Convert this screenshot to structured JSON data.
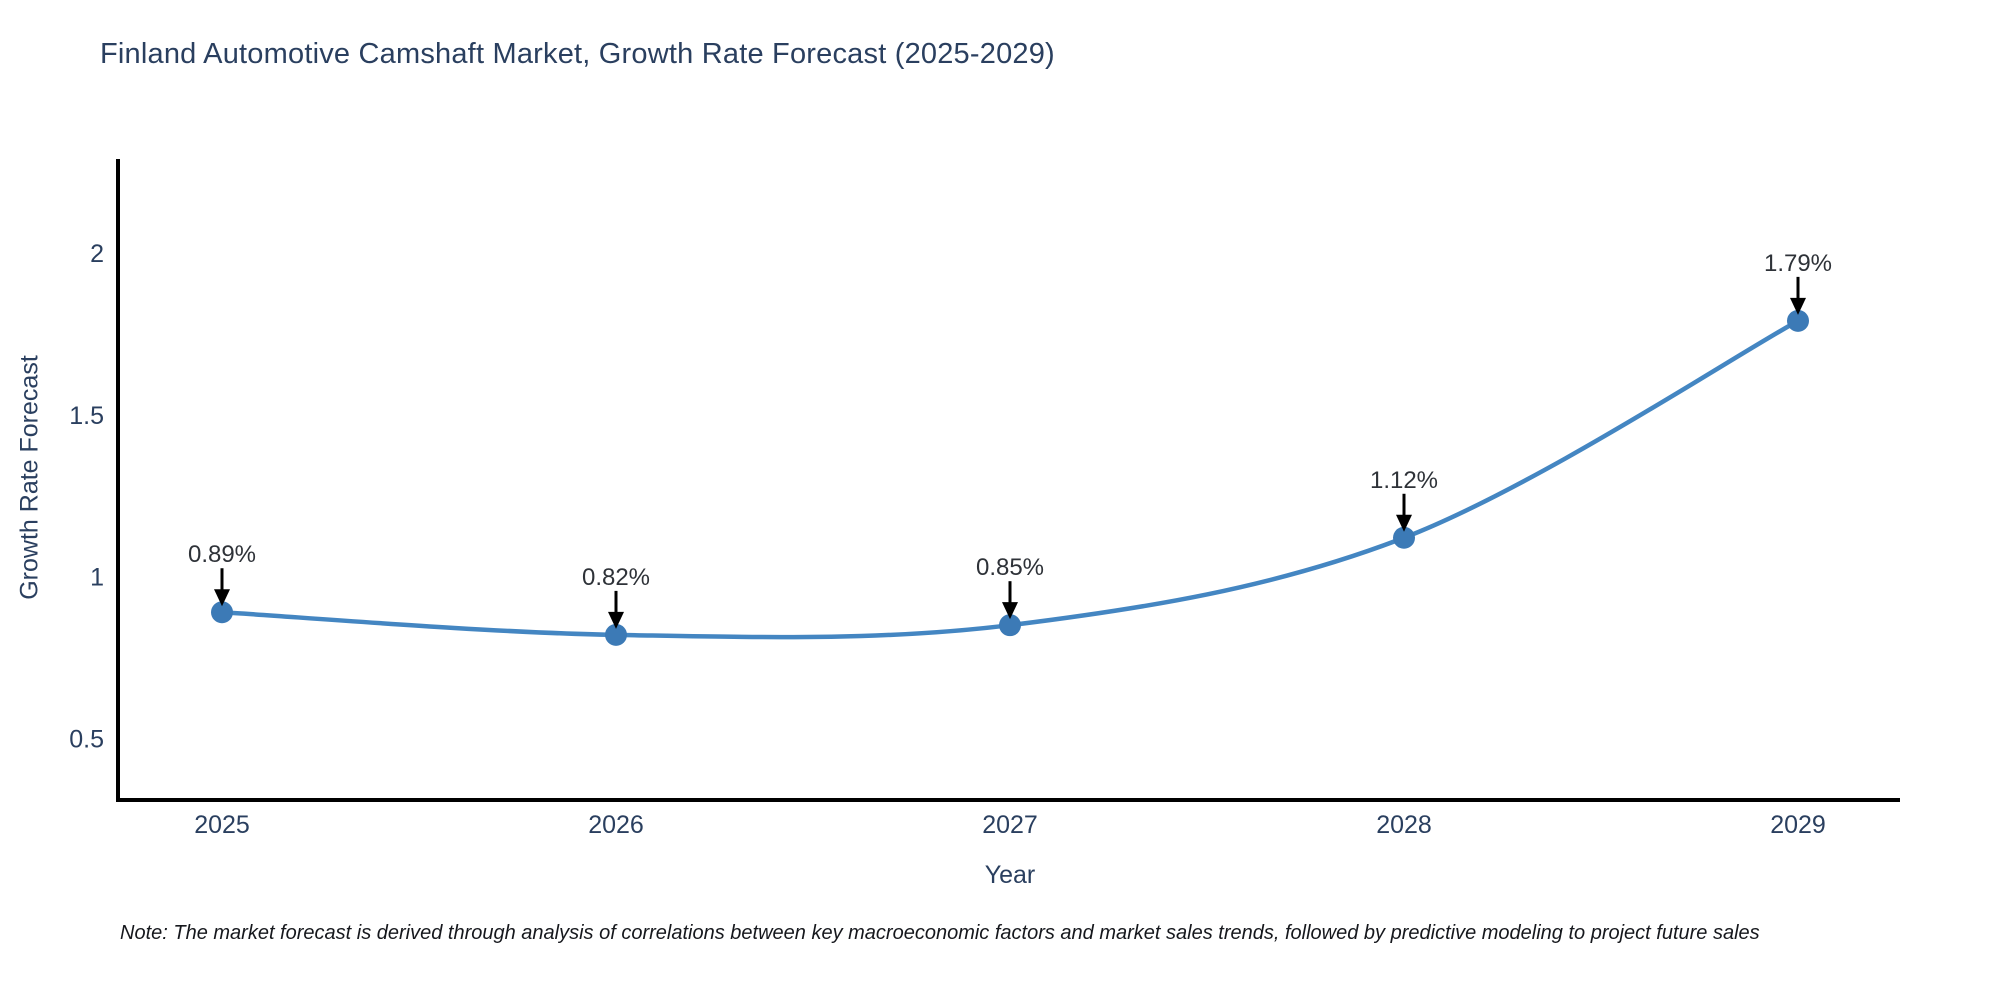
{
  "chart_data": {
    "type": "line",
    "title": "Finland Automotive Camshaft Market, Growth Rate Forecast (2025-2029)",
    "xlabel": "Year",
    "ylabel": "Growth Rate Forecast",
    "categories": [
      "2025",
      "2026",
      "2027",
      "2028",
      "2029"
    ],
    "series": [
      {
        "name": "Growth Rate Forecast",
        "values": [
          0.89,
          0.82,
          0.85,
          1.12,
          1.79
        ],
        "point_labels": [
          "0.89%",
          "0.82%",
          "0.85%",
          "1.12%",
          "1.79%"
        ]
      }
    ],
    "yticks": [
      0.5,
      1,
      1.5,
      2
    ],
    "ytick_labels": [
      "0.5",
      "1",
      "1.5",
      "2"
    ],
    "ylim": [
      0.31,
      2.29
    ],
    "grid": false,
    "legend_position": "none",
    "line_color": "#4486c2",
    "marker_color": "#3c7ab6",
    "axis_color": "#000000",
    "text_color": "#2a3f5f",
    "annotation_color": "#2e3238",
    "arrow_color": "#000000",
    "note": "Note: The market forecast is derived through analysis of correlations between key macroeconomic factors and market sales trends, followed by predictive modeling to project future sales"
  }
}
